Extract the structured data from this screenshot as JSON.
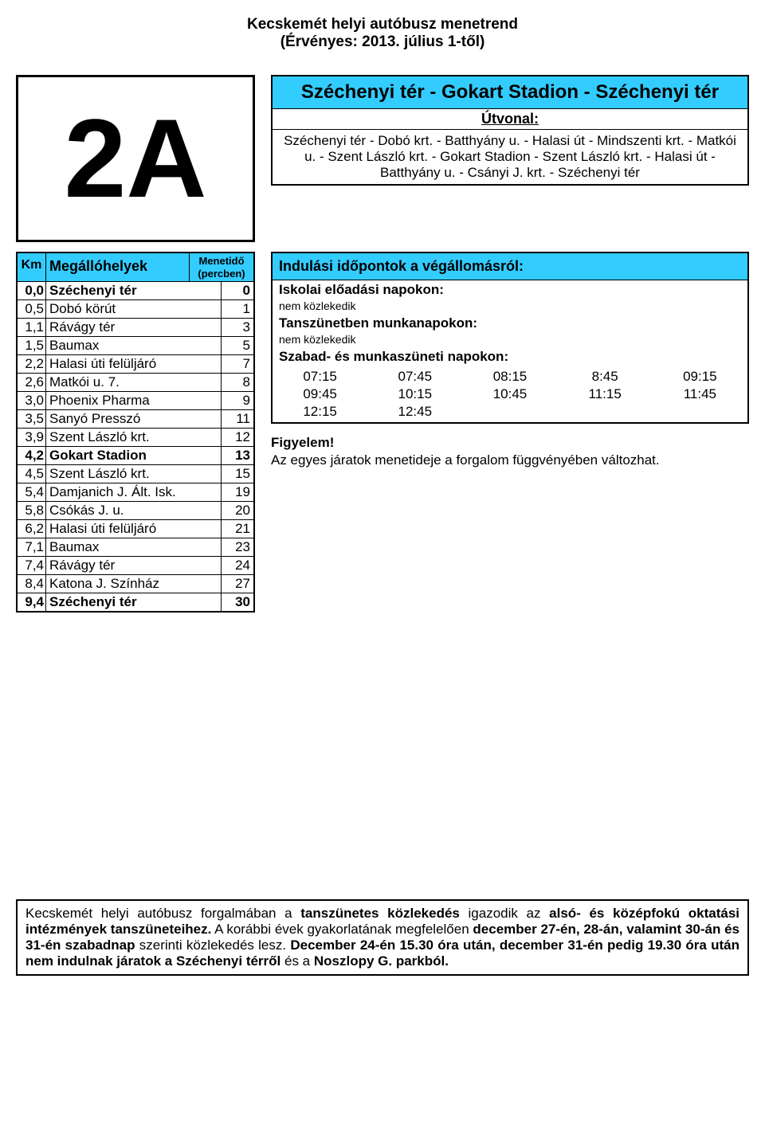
{
  "header": {
    "line1": "Kecskemét helyi autóbusz menetrend",
    "line2": "(Érvényes: 2013. július 1-től)"
  },
  "route_number": "2A",
  "route": {
    "title": "Széchenyi tér - Gokart Stadion - Széchenyi tér",
    "utvonal_label": "Útvonal:",
    "desc": "Széchenyi tér - Dobó krt. - Batthyány u. - Halasi út - Mindszenti krt. - Matkói u. - Szent László krt. - Gokart Stadion - Szent László krt. - Halasi út - Batthyány u. - Csányi J. krt. - Széchenyi tér"
  },
  "stops_table": {
    "km_label": "Km",
    "name_label": "Megállóhelyek",
    "time_label": "Menetidő (percben)",
    "rows": [
      {
        "km": "0,0",
        "name": "Széchenyi tér",
        "time": "0",
        "bold": true
      },
      {
        "km": "0,5",
        "name": "Dobó körút",
        "time": "1"
      },
      {
        "km": "1,1",
        "name": "Rávágy tér",
        "time": "3"
      },
      {
        "km": "1,5",
        "name": "Baumax",
        "time": "5"
      },
      {
        "km": "2,2",
        "name": "Halasi úti felüljáró",
        "time": "7"
      },
      {
        "km": "2,6",
        "name": "Matkói u. 7.",
        "time": "8"
      },
      {
        "km": "3,0",
        "name": "Phoenix Pharma",
        "time": "9"
      },
      {
        "km": "3,5",
        "name": "Sanyó Presszó",
        "time": "11"
      },
      {
        "km": "3,9",
        "name": "Szent László krt.",
        "time": "12"
      },
      {
        "km": "4,2",
        "name": "Gokart Stadion",
        "time": "13",
        "bold": true
      },
      {
        "km": "4,5",
        "name": "Szent László krt.",
        "time": "15"
      },
      {
        "km": "5,4",
        "name": "Damjanich J. Ált. Isk.",
        "time": "19"
      },
      {
        "km": "5,8",
        "name": "Csókás J. u.",
        "time": "20"
      },
      {
        "km": "6,2",
        "name": "Halasi úti felüljáró",
        "time": "21"
      },
      {
        "km": "7,1",
        "name": "Baumax",
        "time": "23"
      },
      {
        "km": "7,4",
        "name": "Rávágy tér",
        "time": "24"
      },
      {
        "km": "8,4",
        "name": "Katona J. Színház",
        "time": "27"
      },
      {
        "km": "9,4",
        "name": "Széchenyi tér",
        "time": "30",
        "bold": true
      }
    ]
  },
  "departures": {
    "header": "Indulási időpontok a végállomásról:",
    "school_label": "Iskolai előadási napokon:",
    "school_note": "nem közlekedik",
    "break_label": "Tanszünetben munkanapokon:",
    "break_note": "nem közlekedik",
    "holiday_label": "Szabad- és munkaszüneti napokon:",
    "holiday_times": [
      "07:15",
      "07:45",
      "08:15",
      "8:45",
      "09:15",
      "09:45",
      "10:15",
      "10:45",
      "11:15",
      "11:45",
      "12:15",
      "12:45"
    ]
  },
  "notice": {
    "title": "Figyelem!",
    "text": "Az egyes járatok menetideje a forgalom függvényében változhat."
  },
  "footer": {
    "p1a": "Kecskemét helyi autóbusz forgalmában a ",
    "p1b": "tanszünetes közlekedés",
    "p1c": " igazodik az ",
    "p1d": "alsó- és középfokú oktatási intézmények tanszüneteihez.",
    "p1e": " A korábbi évek gyakorlatának megfelelően ",
    "p1f": "december 27-én, 28-án, valamint 30-án és 31-én szabadnap",
    "p1g": " szerinti közlekedés lesz. ",
    "p1h": "December 24-én 15.30 óra után, december 31-én pedig 19.30 óra után nem indulnak járatok a Széchenyi térről",
    "p1i": " és a ",
    "p1j": "Noszlopy G. parkból."
  },
  "colors": {
    "accent": "#33ccff",
    "border": "#000000",
    "bg": "#ffffff",
    "text": "#000000"
  }
}
